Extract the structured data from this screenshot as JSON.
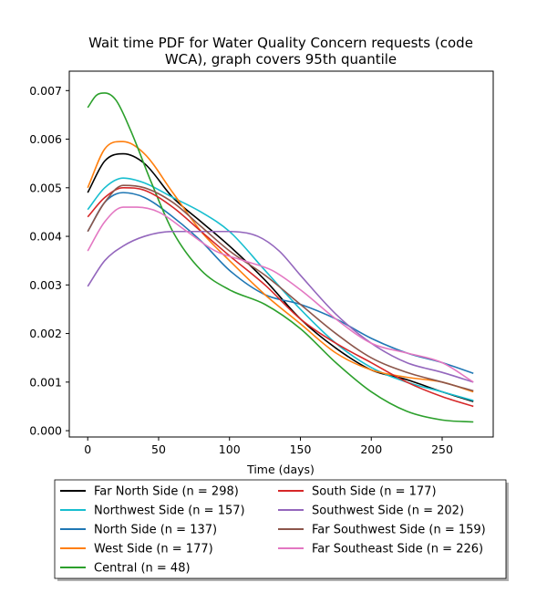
{
  "chart_data": {
    "type": "line",
    "title_line1": "Wait time PDF for Water Quality Concern  requests (code",
    "title_line2": "WCA), graph covers 95th quantile",
    "xlabel": "Time (days)",
    "ylabel": "",
    "xlim": [
      -13,
      286
    ],
    "ylim": [
      -0.00013,
      0.0074
    ],
    "xticks": [
      0,
      50,
      100,
      150,
      200,
      250
    ],
    "yticks": [
      0.0,
      0.001,
      0.002,
      0.003,
      0.004,
      0.005,
      0.006,
      0.007
    ],
    "ytick_labels": [
      "0.000",
      "0.001",
      "0.002",
      "0.003",
      "0.004",
      "0.005",
      "0.006",
      "0.007"
    ],
    "legend_placement": "below plot, two columns",
    "series": [
      {
        "name": "Far North Side (n = 298)",
        "color": "#000000",
        "x": [
          0,
          12,
          25,
          40,
          60,
          80,
          100,
          125,
          150,
          175,
          200,
          225,
          250,
          272
        ],
        "y": [
          0.0049,
          0.00555,
          0.0057,
          0.0055,
          0.0048,
          0.0043,
          0.0038,
          0.0031,
          0.0023,
          0.0017,
          0.00125,
          0.00105,
          0.0008,
          0.0006
        ]
      },
      {
        "name": "Northwest Side (n = 157)",
        "color": "#17becf",
        "x": [
          0,
          12,
          25,
          40,
          60,
          80,
          100,
          125,
          150,
          175,
          200,
          225,
          250,
          272
        ],
        "y": [
          0.00455,
          0.005,
          0.0052,
          0.0051,
          0.0048,
          0.0045,
          0.0041,
          0.0033,
          0.0025,
          0.0018,
          0.0013,
          0.001,
          0.0008,
          0.00062
        ]
      },
      {
        "name": "North Side (n = 137)",
        "color": "#1f77b4",
        "x": [
          0,
          12,
          25,
          40,
          60,
          80,
          100,
          125,
          150,
          175,
          200,
          225,
          250,
          272
        ],
        "y": [
          0.0041,
          0.0047,
          0.0049,
          0.0048,
          0.0044,
          0.0039,
          0.0033,
          0.0028,
          0.0026,
          0.0023,
          0.0019,
          0.0016,
          0.0014,
          0.00118
        ]
      },
      {
        "name": "West Side (n = 177)",
        "color": "#ff7f0e",
        "x": [
          0,
          12,
          25,
          40,
          60,
          80,
          100,
          125,
          150,
          175,
          200,
          225,
          250,
          272
        ],
        "y": [
          0.005,
          0.0058,
          0.00595,
          0.0057,
          0.0049,
          0.0041,
          0.0035,
          0.0028,
          0.0022,
          0.0016,
          0.00125,
          0.0011,
          0.001,
          0.0008
        ]
      },
      {
        "name": "Central (n = 48)",
        "color": "#2ca02c",
        "x": [
          0,
          6,
          12,
          20,
          30,
          45,
          60,
          80,
          100,
          125,
          150,
          175,
          200,
          225,
          250,
          272
        ],
        "y": [
          0.00665,
          0.0069,
          0.00695,
          0.0068,
          0.0062,
          0.0051,
          0.0041,
          0.0033,
          0.0029,
          0.0026,
          0.0021,
          0.0014,
          0.0008,
          0.0004,
          0.00022,
          0.00018
        ]
      },
      {
        "name": "South Side (n = 177)",
        "color": "#d62728",
        "x": [
          0,
          12,
          25,
          40,
          60,
          80,
          100,
          125,
          150,
          175,
          200,
          225,
          250,
          272
        ],
        "y": [
          0.0044,
          0.0048,
          0.005,
          0.00495,
          0.0046,
          0.0041,
          0.0036,
          0.003,
          0.0023,
          0.0018,
          0.0014,
          0.001,
          0.0007,
          0.0005
        ]
      },
      {
        "name": "Southwest Side (n = 202)",
        "color": "#9467bd",
        "x": [
          0,
          12,
          25,
          40,
          60,
          80,
          100,
          120,
          135,
          150,
          175,
          200,
          225,
          250,
          272
        ],
        "y": [
          0.00297,
          0.0035,
          0.0038,
          0.004,
          0.0041,
          0.0041,
          0.0041,
          0.004,
          0.0037,
          0.0032,
          0.0024,
          0.0018,
          0.0014,
          0.0012,
          0.001
        ]
      },
      {
        "name": "Far Southwest Side (n = 159)",
        "color": "#8c564b",
        "x": [
          0,
          12,
          25,
          40,
          60,
          80,
          100,
          125,
          150,
          175,
          200,
          225,
          250,
          272
        ],
        "y": [
          0.0041,
          0.0047,
          0.00505,
          0.005,
          0.0047,
          0.0042,
          0.0037,
          0.0032,
          0.0026,
          0.002,
          0.0015,
          0.0012,
          0.001,
          0.00082
        ]
      },
      {
        "name": "Far Southeast Side (n = 226)",
        "color": "#e377c2",
        "x": [
          0,
          12,
          25,
          35,
          50,
          70,
          90,
          110,
          130,
          150,
          175,
          200,
          225,
          250,
          272
        ],
        "y": [
          0.0037,
          0.0043,
          0.0046,
          0.0046,
          0.0045,
          0.0041,
          0.0037,
          0.0035,
          0.0033,
          0.0029,
          0.0023,
          0.0018,
          0.0016,
          0.0014,
          0.001
        ]
      }
    ]
  }
}
